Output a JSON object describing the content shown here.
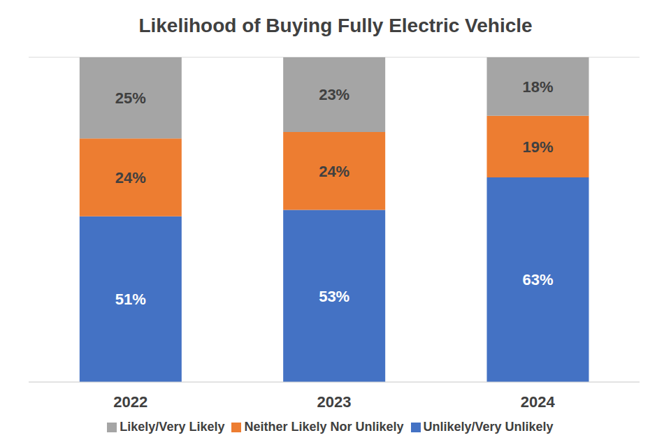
{
  "chart_data": {
    "type": "bar",
    "title": "Likelihood of Buying Fully Electric Vehicle",
    "categories": [
      "2022",
      "2023",
      "2024"
    ],
    "series": [
      {
        "name": "Unlikely/Very Unlikely",
        "color": "#4472c4",
        "values": [
          51,
          53,
          63
        ],
        "value_labels": [
          "51%",
          "53%",
          "63%"
        ]
      },
      {
        "name": "Neither Likely Nor Unlikely",
        "color": "#ed7d31",
        "values": [
          24,
          24,
          19
        ],
        "value_labels": [
          "24%",
          "24%",
          "19%"
        ]
      },
      {
        "name": "Likely/Very Likely",
        "color": "#a5a5a5",
        "values": [
          25,
          23,
          18
        ],
        "value_labels": [
          "25%",
          "23%",
          "18%"
        ]
      }
    ],
    "stacked": true,
    "data_labels": true,
    "ylim": [
      0,
      100
    ],
    "yticks": [
      0,
      10,
      20,
      30,
      40,
      50,
      60,
      70,
      80,
      90,
      100
    ],
    "tick_labels": "x",
    "grid": true,
    "legend": "bottom"
  }
}
